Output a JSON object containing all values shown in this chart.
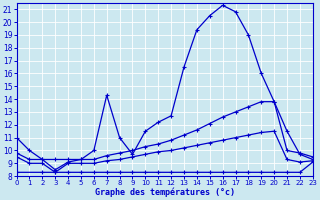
{
  "xlabel": "Graphe des températures (°c)",
  "bg_color": "#cce8f0",
  "line_color": "#0000cc",
  "xlim": [
    0,
    23
  ],
  "ylim": [
    8,
    21.5
  ],
  "xticks": [
    0,
    1,
    2,
    3,
    4,
    5,
    6,
    7,
    8,
    9,
    10,
    11,
    12,
    13,
    14,
    15,
    16,
    17,
    18,
    19,
    20,
    21,
    22,
    23
  ],
  "yticks": [
    8,
    9,
    10,
    11,
    12,
    13,
    14,
    15,
    16,
    17,
    18,
    19,
    20,
    21
  ],
  "curve1_x": [
    0,
    1,
    2,
    3,
    4,
    5,
    6,
    7,
    8,
    9,
    10,
    11,
    12,
    13,
    14,
    15,
    16,
    17,
    18,
    19,
    20,
    21,
    22,
    23
  ],
  "curve1_y": [
    11.0,
    10.0,
    9.3,
    8.5,
    9.1,
    9.3,
    10.0,
    14.3,
    11.0,
    9.7,
    11.5,
    12.2,
    12.7,
    16.5,
    19.4,
    20.5,
    21.3,
    20.8,
    19.0,
    16.0,
    13.8,
    10.0,
    9.8,
    9.5
  ],
  "curve2_x": [
    0,
    1,
    2,
    3,
    4,
    5,
    6,
    7,
    8,
    9,
    10,
    11,
    12,
    13,
    14,
    15,
    16,
    17,
    18,
    19,
    20,
    21,
    22,
    23
  ],
  "curve2_y": [
    9.8,
    9.3,
    9.3,
    9.3,
    9.3,
    9.3,
    9.3,
    9.6,
    9.8,
    10.0,
    10.3,
    10.5,
    10.8,
    11.2,
    11.6,
    12.1,
    12.6,
    13.0,
    13.4,
    13.8,
    13.8,
    11.5,
    9.7,
    9.3
  ],
  "curve3_x": [
    0,
    1,
    2,
    3,
    4,
    5,
    6,
    7,
    8,
    9,
    10,
    11,
    12,
    13,
    14,
    15,
    16,
    17,
    18,
    19,
    20,
    21,
    22,
    23
  ],
  "curve3_y": [
    9.5,
    9.0,
    9.0,
    8.3,
    9.0,
    9.0,
    9.0,
    9.2,
    9.3,
    9.5,
    9.7,
    9.9,
    10.0,
    10.2,
    10.4,
    10.6,
    10.8,
    11.0,
    11.2,
    11.4,
    11.5,
    9.3,
    9.1,
    9.2
  ],
  "curve4_x": [
    0,
    2,
    3,
    4,
    5,
    6,
    7,
    8,
    9,
    10,
    11,
    12,
    13,
    14,
    15,
    16,
    17,
    18,
    19,
    20,
    21,
    22,
    23
  ],
  "curve4_y": [
    8.3,
    8.3,
    8.3,
    8.3,
    8.3,
    8.3,
    8.3,
    8.3,
    8.3,
    8.3,
    8.3,
    8.3,
    8.3,
    8.3,
    8.3,
    8.3,
    8.3,
    8.3,
    8.3,
    8.3,
    8.3,
    8.3,
    9.1
  ]
}
